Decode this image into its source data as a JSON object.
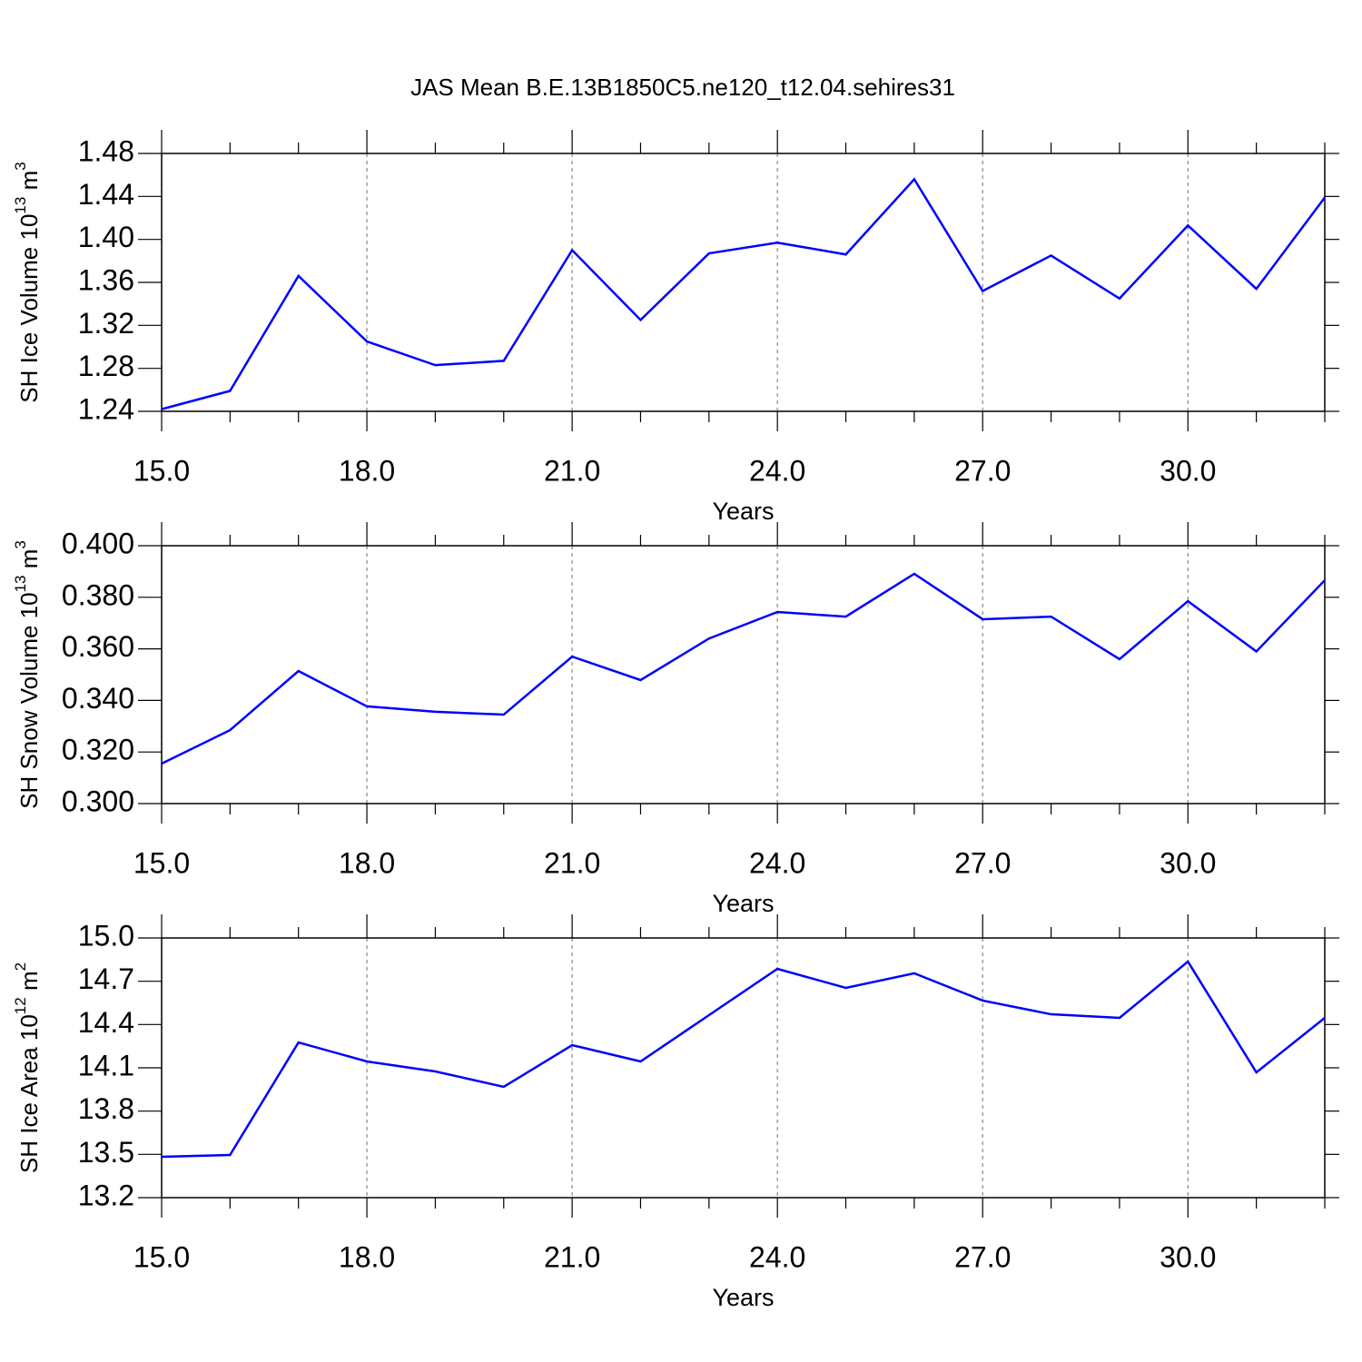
{
  "chart_data": [
    {
      "type": "line",
      "title": "JAS Mean B.E.13B1850C5.ne120_t12.04.sehires31",
      "ylabel": [
        "SH Ice Volume 10",
        "13",
        " m",
        "3"
      ],
      "xlabel": "Years",
      "x": [
        15,
        16,
        17,
        18,
        19,
        20,
        21,
        22,
        23,
        24,
        25,
        26,
        27,
        28,
        29,
        30,
        31,
        32
      ],
      "series": [
        {
          "color": "#0000ff",
          "values": [
            1.242,
            1.259,
            1.366,
            1.305,
            1.283,
            1.287,
            1.39,
            1.325,
            1.387,
            1.397,
            1.386,
            1.456,
            1.352,
            1.385,
            1.345,
            1.413,
            1.354,
            1.439
          ]
        }
      ],
      "xlim": [
        15,
        32
      ],
      "xticks": [
        {
          "value": 15,
          "label": "15.0"
        },
        {
          "value": 18,
          "label": "18.0"
        },
        {
          "value": 21,
          "label": "21.0"
        },
        {
          "value": 24,
          "label": "24.0"
        },
        {
          "value": 27,
          "label": "27.0"
        },
        {
          "value": 30,
          "label": "30.0"
        }
      ],
      "xminorticks": [
        16,
        17,
        19,
        20,
        22,
        23,
        25,
        26,
        28,
        29,
        31,
        32
      ],
      "ylim": [
        1.24,
        1.48
      ],
      "yticks": [
        1.24,
        1.28,
        1.32,
        1.36,
        {
          "value": 1.4,
          "label": "1.40"
        },
        1.44,
        1.48
      ],
      "grid": "x"
    },
    {
      "type": "line",
      "ylabel": [
        "SH Snow Volume 10",
        "13",
        " m",
        "3"
      ],
      "xlabel": "Years",
      "x": [
        15,
        16,
        17,
        18,
        19,
        20,
        21,
        22,
        23,
        24,
        25,
        26,
        27,
        28,
        29,
        30,
        31,
        32
      ],
      "series": [
        {
          "color": "#0000ff",
          "values": [
            0.3155,
            0.3285,
            0.3514,
            0.3377,
            0.3356,
            0.3345,
            0.357,
            0.3479,
            0.364,
            0.3743,
            0.3725,
            0.3891,
            0.3715,
            0.3725,
            0.356,
            0.3785,
            0.359,
            0.3866
          ]
        }
      ],
      "xlim": [
        15,
        32
      ],
      "xticks": [
        {
          "value": 15,
          "label": "15.0"
        },
        {
          "value": 18,
          "label": "18.0"
        },
        {
          "value": 21,
          "label": "21.0"
        },
        {
          "value": 24,
          "label": "24.0"
        },
        {
          "value": 27,
          "label": "27.0"
        },
        {
          "value": 30,
          "label": "30.0"
        }
      ],
      "xminorticks": [
        16,
        17,
        19,
        20,
        22,
        23,
        25,
        26,
        28,
        29,
        31,
        32
      ],
      "ylim": [
        0.3,
        0.4
      ],
      "yticks": [
        {
          "value": 0.3,
          "label": "0.300"
        },
        {
          "value": 0.32,
          "label": "0.320"
        },
        {
          "value": 0.34,
          "label": "0.340"
        },
        {
          "value": 0.36,
          "label": "0.360"
        },
        {
          "value": 0.38,
          "label": "0.380"
        },
        {
          "value": 0.4,
          "label": "0.400"
        }
      ],
      "grid": "x"
    },
    {
      "type": "line",
      "ylabel": [
        "SH Ice Area 10",
        "12",
        " m",
        "2"
      ],
      "xlabel": "Years",
      "x": [
        15,
        16,
        17,
        18,
        19,
        20,
        21,
        22,
        23,
        24,
        25,
        26,
        27,
        28,
        29,
        30,
        31,
        32
      ],
      "series": [
        {
          "color": "#0000ff",
          "values": [
            13.483,
            13.496,
            14.276,
            14.144,
            14.075,
            13.968,
            14.257,
            14.144,
            14.465,
            14.786,
            14.654,
            14.755,
            14.566,
            14.471,
            14.446,
            14.836,
            14.068,
            14.446
          ]
        }
      ],
      "xlim": [
        15,
        32
      ],
      "xticks": [
        {
          "value": 15,
          "label": "15.0"
        },
        {
          "value": 18,
          "label": "18.0"
        },
        {
          "value": 21,
          "label": "21.0"
        },
        {
          "value": 24,
          "label": "24.0"
        },
        {
          "value": 27,
          "label": "27.0"
        },
        {
          "value": 30,
          "label": "30.0"
        }
      ],
      "xminorticks": [
        16,
        17,
        19,
        20,
        22,
        23,
        25,
        26,
        28,
        29,
        31,
        32
      ],
      "ylim": [
        13.2,
        15.0
      ],
      "yticks": [
        13.2,
        13.5,
        13.8,
        14.1,
        14.4,
        14.7,
        {
          "value": 15,
          "label": "15.0"
        }
      ],
      "grid": "x"
    }
  ]
}
